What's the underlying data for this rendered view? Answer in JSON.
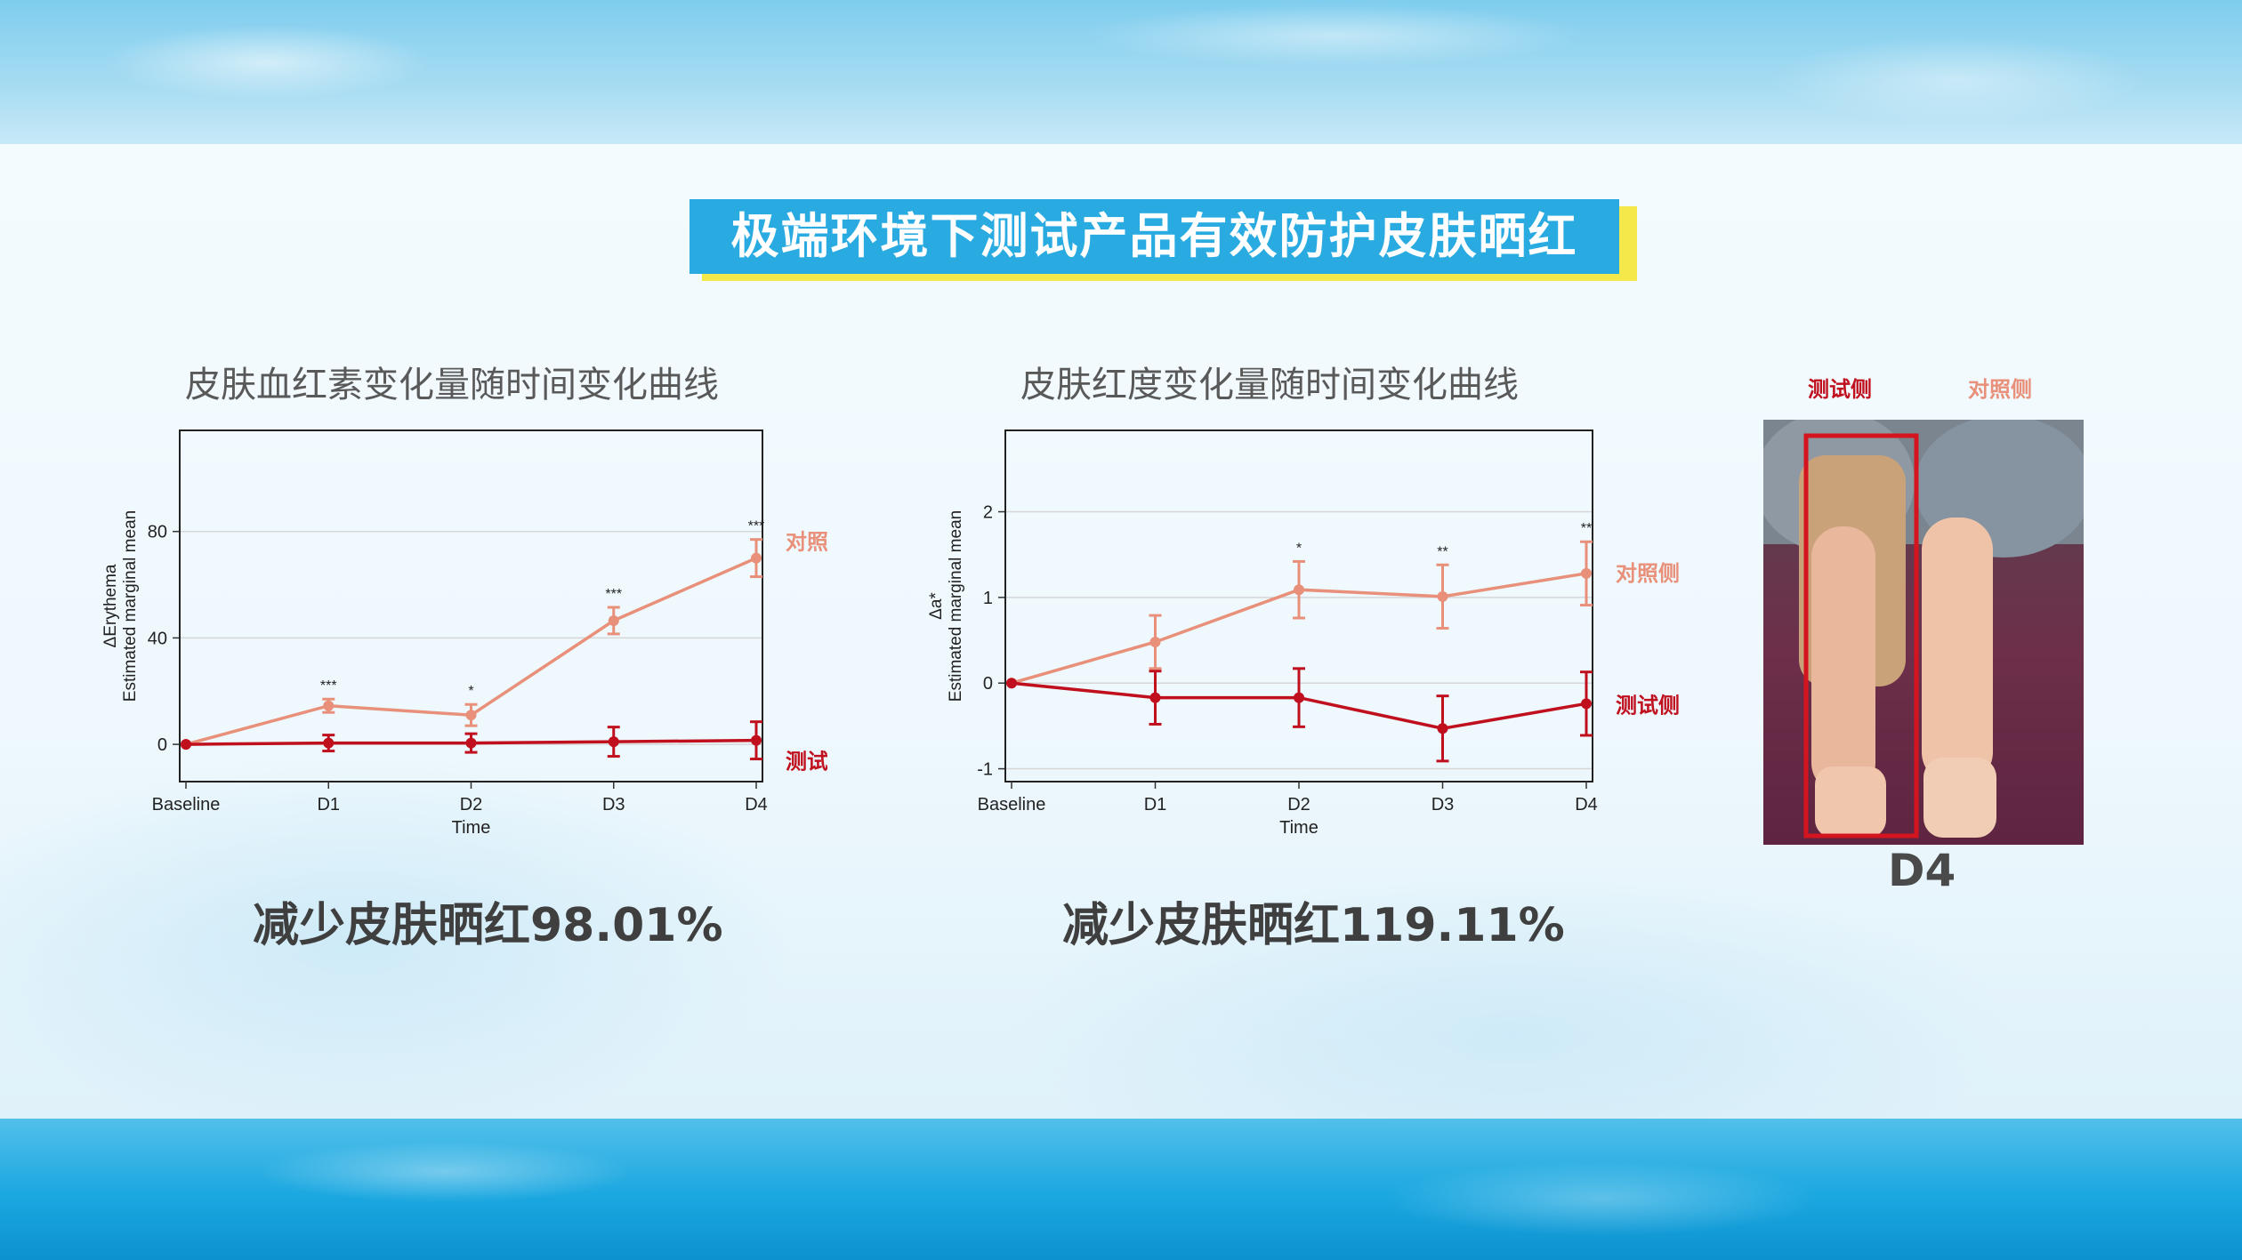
{
  "headline": "极端环境下测试产品有效防护皮肤晒红",
  "charts": {
    "left": {
      "title": "皮肤血红素变化量随时间变化曲线",
      "result": "减少皮肤晒红98.01%"
    },
    "right": {
      "title": "皮肤红度变化量随时间变化曲线",
      "result": "减少皮肤晒红119.11%"
    }
  },
  "photo": {
    "test_label": "测试侧",
    "control_label": "对照侧",
    "caption": "D4"
  },
  "colors": {
    "control": "#e8907a",
    "test": "#c0101e",
    "headline_bg": "#29abe2",
    "headline_shadow": "#f5e84a"
  },
  "chart_data": [
    {
      "type": "line",
      "title": "皮肤血红素变化量随时间变化曲线",
      "xlabel": "Time",
      "ylabel": "ΔErythema",
      "ylabel2": "Estimated marginal mean",
      "categories": [
        "Baseline",
        "D1",
        "D2",
        "D3",
        "D4"
      ],
      "yticks": [
        0,
        40,
        80
      ],
      "ylim": [
        -14,
        118
      ],
      "grid": true,
      "series": [
        {
          "name": "对照侧",
          "color": "#e8907a",
          "values": [
            0,
            14.5,
            11,
            46.5,
            70
          ],
          "err": [
            0,
            2.5,
            4,
            5,
            7
          ]
        },
        {
          "name": "测试侧",
          "color": "#c0101e",
          "values": [
            0,
            0.5,
            0.5,
            1,
            1.5
          ],
          "err": [
            0,
            3,
            3.5,
            5.5,
            7
          ]
        }
      ],
      "significance": [
        "",
        "***",
        "*",
        "***",
        "***"
      ]
    },
    {
      "type": "line",
      "title": "皮肤红度变化量随时间变化曲线",
      "xlabel": "Time",
      "ylabel": "Δa*",
      "ylabel2": "Estimated marginal mean",
      "categories": [
        "Baseline",
        "D1",
        "D2",
        "D3",
        "D4"
      ],
      "yticks": [
        -1,
        0,
        1,
        2
      ],
      "ylim": [
        -1.15,
        2.95
      ],
      "grid": true,
      "series": [
        {
          "name": "对照侧",
          "color": "#e8907a",
          "values": [
            0,
            0.48,
            1.09,
            1.01,
            1.28
          ],
          "err": [
            0,
            0.31,
            0.33,
            0.37,
            0.37
          ]
        },
        {
          "name": "测试侧",
          "color": "#c0101e",
          "values": [
            0,
            -0.17,
            -0.17,
            -0.53,
            -0.24
          ],
          "err": [
            0,
            0.31,
            0.34,
            0.38,
            0.37
          ]
        }
      ],
      "significance": [
        "",
        "",
        "*",
        "**",
        "**"
      ]
    }
  ]
}
